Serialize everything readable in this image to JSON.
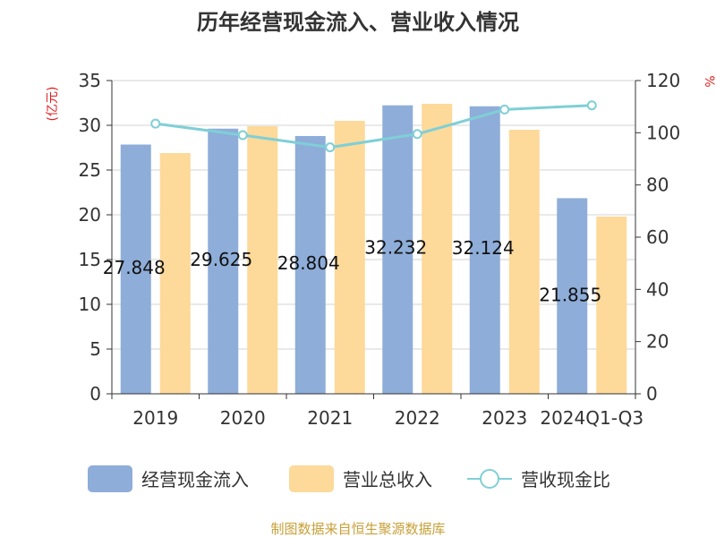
{
  "chart_data": {
    "type": "bar",
    "title": "历年经营现金流入、营业收入情况",
    "y_left_label": "(亿元)",
    "y_right_label": "%",
    "categories": [
      "2019",
      "2020",
      "2021",
      "2022",
      "2023",
      "2024Q1-Q3"
    ],
    "y_left_ticks": [
      "0",
      "5",
      "10",
      "15",
      "20",
      "25",
      "30",
      "35"
    ],
    "y_right_ticks": [
      "0",
      "20",
      "40",
      "60",
      "80",
      "100",
      "120"
    ],
    "y_left_lim": [
      0,
      35
    ],
    "y_right_lim": [
      0,
      120
    ],
    "grid": true,
    "legend_position": "bottom",
    "series": [
      {
        "name": "经营现金流入",
        "type": "bar",
        "axis": "left",
        "color": "#8eadd9",
        "values": [
          27.848,
          29.625,
          28.804,
          32.232,
          32.124,
          21.855
        ],
        "labels": [
          "27.848",
          "29.625",
          "28.804",
          "32.232",
          "32.124",
          "21.855"
        ]
      },
      {
        "name": "营业总收入",
        "type": "bar",
        "axis": "left",
        "color": "#fdd99a",
        "values": [
          26.9,
          29.9,
          30.5,
          32.4,
          29.5,
          19.8
        ]
      },
      {
        "name": "营收现金比",
        "type": "line",
        "axis": "right",
        "color": "#7fcfd6",
        "values": [
          103.5,
          99.1,
          94.4,
          99.5,
          108.9,
          110.5
        ]
      }
    ],
    "source": "制图数据来自恒生聚源数据库"
  }
}
